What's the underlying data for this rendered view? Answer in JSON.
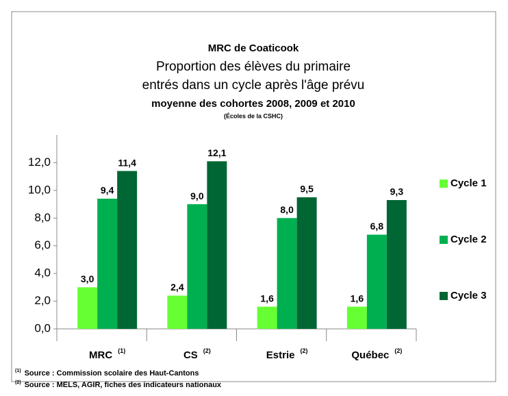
{
  "chart_data": {
    "type": "bar",
    "title": "MRC de Coaticook",
    "subtitle": [
      "Proportion des élèves du primaire",
      "entrés dans un cycle après l'âge prévu"
    ],
    "subtitle_bold": "moyenne des cohortes 2008, 2009 et 2010",
    "subtitle_small": "(Écoles de la CSHC)",
    "categories": [
      "MRC",
      "CS",
      "Estrie",
      "Québec"
    ],
    "category_notes": [
      "(1)",
      "(2)",
      "(2)",
      "(2)"
    ],
    "series": [
      {
        "name": "Cycle 1",
        "color": "#66ff33",
        "values": [
          3.0,
          2.4,
          1.6,
          1.6
        ],
        "value_labels": [
          "3,0",
          "2,4",
          "1,6",
          "1,6"
        ]
      },
      {
        "name": "Cycle 2",
        "color": "#00b050",
        "values": [
          9.4,
          9.0,
          8.0,
          6.8
        ],
        "value_labels": [
          "9,4",
          "9,0",
          "8,0",
          "6,8"
        ]
      },
      {
        "name": "Cycle 3",
        "color": "#006633",
        "values": [
          11.4,
          12.1,
          9.5,
          9.3
        ],
        "value_labels": [
          "11,4",
          "12,1",
          "9,5",
          "9,3"
        ]
      }
    ],
    "ylim": [
      0,
      14
    ],
    "yticks": [
      {
        "value": 0,
        "label": "0,0"
      },
      {
        "value": 2,
        "label": "2,0"
      },
      {
        "value": 4,
        "label": "4,0"
      },
      {
        "value": 6,
        "label": "6,0"
      },
      {
        "value": 8,
        "label": "8,0"
      },
      {
        "value": 10,
        "label": "10,0"
      },
      {
        "value": 12,
        "label": "12,0"
      }
    ],
    "legend": "right",
    "notes": [
      {
        "marker": "(1)",
        "text": "Source :  Commission scolaire des Haut-Cantons"
      },
      {
        "marker": "(2)",
        "text": "Source : MELS, AGIR, fiches des indicateurs nationaux"
      }
    ]
  }
}
